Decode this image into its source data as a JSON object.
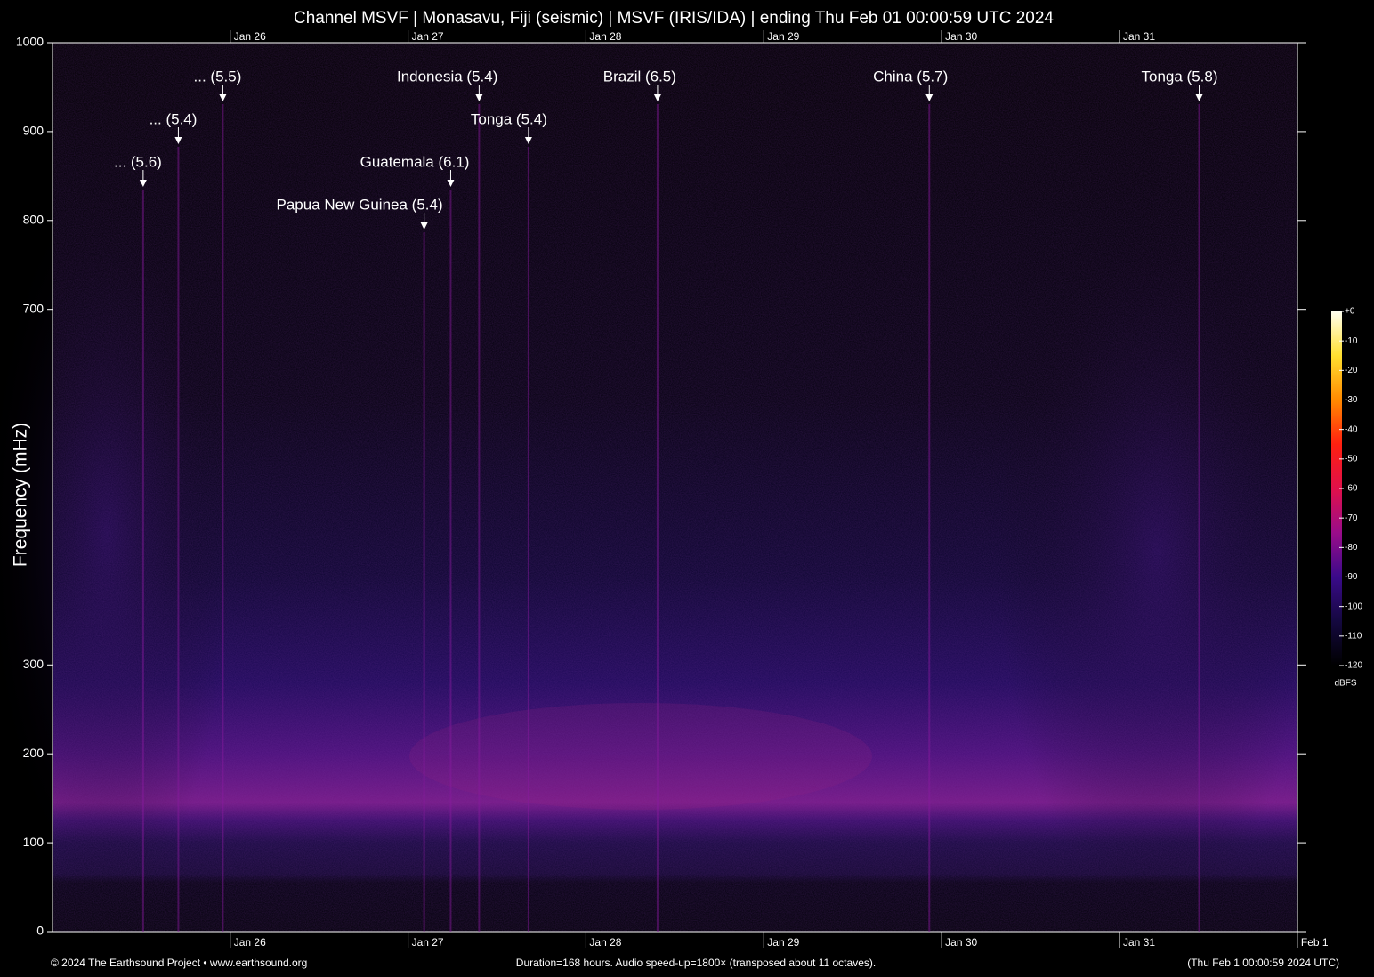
{
  "chart_data": {
    "type": "spectrogram",
    "title": "Channel MSVF | Monasavu, Fiji (seismic) | MSVF (IRIS/IDA) | ending Thu Feb 01 00:00:59 UTC 2024",
    "y_label": "Frequency (mHz)",
    "ylim": [
      0,
      1000
    ],
    "yticks": [
      0,
      100,
      200,
      300,
      700,
      800,
      900,
      1000
    ],
    "xlim": [
      "2024-01-25T00:00:59Z",
      "2024-02-01T00:00:59Z"
    ],
    "xticks": [
      {
        "value": "2024-01-26T00:00:00Z",
        "label": "Jan 26"
      },
      {
        "value": "2024-01-27T00:00:00Z",
        "label": "Jan 27"
      },
      {
        "value": "2024-01-28T00:00:00Z",
        "label": "Jan 28"
      },
      {
        "value": "2024-01-29T00:00:00Z",
        "label": "Jan 29"
      },
      {
        "value": "2024-01-30T00:00:00Z",
        "label": "Jan 30"
      },
      {
        "value": "2024-01-31T00:00:00Z",
        "label": "Jan 31"
      },
      {
        "value": "2024-02-01T00:00:00Z",
        "label": "Feb  1"
      }
    ],
    "events": [
      {
        "label": "... (5.6)",
        "time": "2024-01-25T12:15:00Z"
      },
      {
        "label": "... (5.4)",
        "time": "2024-01-25T17:00:00Z"
      },
      {
        "label": "... (5.5)",
        "time": "2024-01-25T23:00:00Z"
      },
      {
        "label": "Papua New Guinea (5.4)",
        "time": "2024-01-27T02:10:00Z"
      },
      {
        "label": "Guatemala (6.1)",
        "time": "2024-01-27T05:45:00Z"
      },
      {
        "label": "Indonesia (5.4)",
        "time": "2024-01-27T09:35:00Z"
      },
      {
        "label": "Tonga (5.4)",
        "time": "2024-01-27T16:15:00Z"
      },
      {
        "label": "Brazil (6.5)",
        "time": "2024-01-28T09:40:00Z"
      },
      {
        "label": "China (5.7)",
        "time": "2024-01-29T22:20:00Z"
      },
      {
        "label": "Tonga (5.8)",
        "time": "2024-01-31T10:45:00Z"
      }
    ],
    "colorbar": {
      "label": "dBFS",
      "clim": [
        -120,
        0
      ],
      "ticks": [
        {
          "value": 0,
          "label": "+0"
        },
        -10,
        -20,
        -30,
        -40,
        -50,
        -60,
        -70,
        -80,
        -90,
        -100,
        -110,
        -120
      ],
      "colormap": [
        "#000000",
        "#14083f",
        "#3a0a8a",
        "#9a0c8a",
        "#e0104a",
        "#ff2010",
        "#ff8a00",
        "#ffe030",
        "#fffff0"
      ]
    },
    "footer_left": "© 2024 The Earthsound Project • www.earthsound.org",
    "footer_center": "Duration=168 hours. Audio speed-up=1800× (transposed about 11 octaves).",
    "footer_right": "(Thu Feb  1 00:00:59 2024 UTC)"
  }
}
